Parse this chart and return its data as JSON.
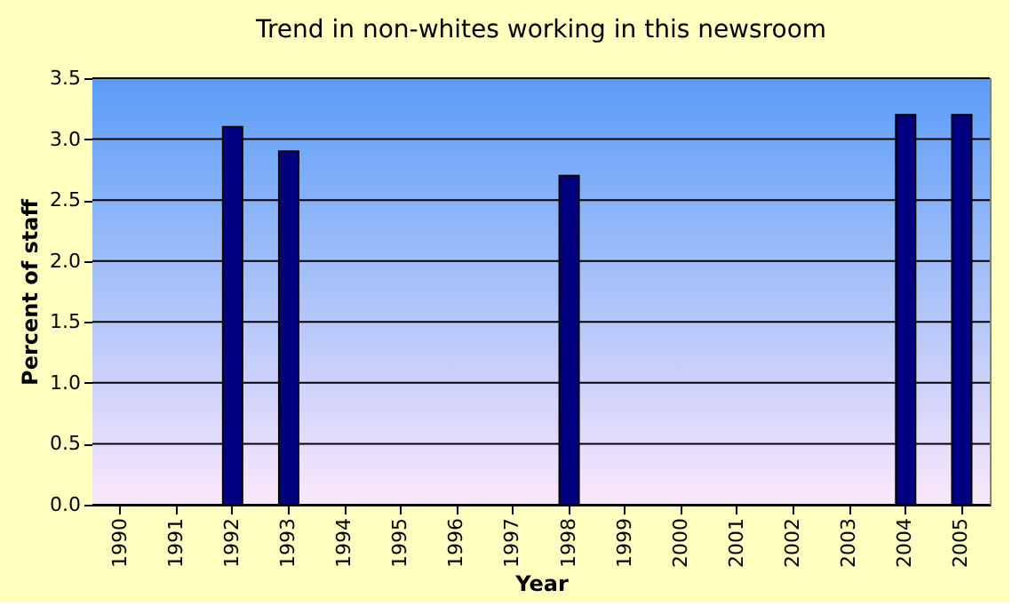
{
  "chart_data": {
    "type": "bar",
    "title": "Trend in non-whites working in this newsroom",
    "xlabel": "Year",
    "ylabel": "Percent of staff",
    "categories": [
      "1990",
      "1991",
      "1992",
      "1993",
      "1994",
      "1995",
      "1996",
      "1997",
      "1998",
      "1999",
      "2000",
      "2001",
      "2002",
      "2003",
      "2004",
      "2005"
    ],
    "values": [
      null,
      null,
      3.1,
      2.9,
      null,
      null,
      null,
      null,
      2.7,
      null,
      null,
      null,
      null,
      null,
      3.2,
      3.2
    ],
    "color": "#000080",
    "ylim": [
      0,
      3.5
    ],
    "yticks": [
      {
        "value": 0,
        "label": "0.0"
      },
      {
        "value": 0.5,
        "label": "0.5"
      },
      {
        "value": 1,
        "label": "1.0"
      },
      {
        "value": 1.5,
        "label": "1.5"
      },
      {
        "value": 2,
        "label": "2.0"
      },
      {
        "value": 2.5,
        "label": "2.5"
      },
      {
        "value": 3,
        "label": "3.0"
      },
      {
        "value": 3.5,
        "label": "3.5"
      }
    ],
    "grid": "y"
  }
}
